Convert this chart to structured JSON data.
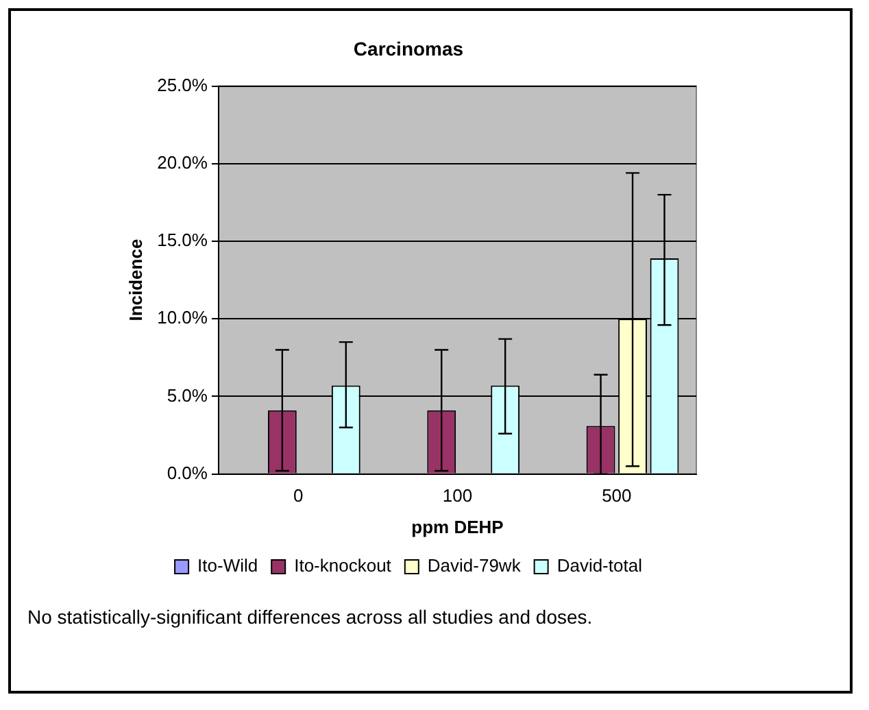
{
  "chart_data": {
    "type": "bar",
    "title": "Carcinomas",
    "xlabel": "ppm DEHP",
    "ylabel": "Incidence",
    "categories": [
      "0",
      "100",
      "500"
    ],
    "series": [
      {
        "name": "Ito-Wild",
        "color": "#9999ff",
        "values": [
          0,
          0,
          0
        ]
      },
      {
        "name": "Ito-knockout",
        "color": "#993366",
        "values": [
          4.1,
          4.1,
          3.1
        ],
        "errors": [
          3.9,
          3.9,
          [
            0.0,
            6.4
          ]
        ]
      },
      {
        "name": "David-79wk",
        "color": "#ffffcc",
        "values": [
          null,
          null,
          10.0
        ],
        "errors": [
          null,
          null,
          [
            0.5,
            19.4
          ]
        ]
      },
      {
        "name": "David-total",
        "color": "#ccffff",
        "values": [
          5.7,
          5.7,
          13.9
        ],
        "errors": [
          [
            3.0,
            8.5
          ],
          [
            2.6,
            8.7
          ],
          [
            9.6,
            18.0
          ]
        ]
      }
    ],
    "ylim": [
      0,
      25
    ],
    "yticks": [
      {
        "value": 0,
        "label": "0.0%"
      },
      {
        "value": 5,
        "label": "5.0%"
      },
      {
        "value": 10,
        "label": "10.0%"
      },
      {
        "value": 15,
        "label": "15.0%"
      },
      {
        "value": 20,
        "label": "20.0%"
      },
      {
        "value": 25,
        "label": "25.0%"
      }
    ],
    "grid": "y",
    "legend": "bottom",
    "annotations": [
      "No statistically-significant differences across all studies and doses."
    ]
  }
}
